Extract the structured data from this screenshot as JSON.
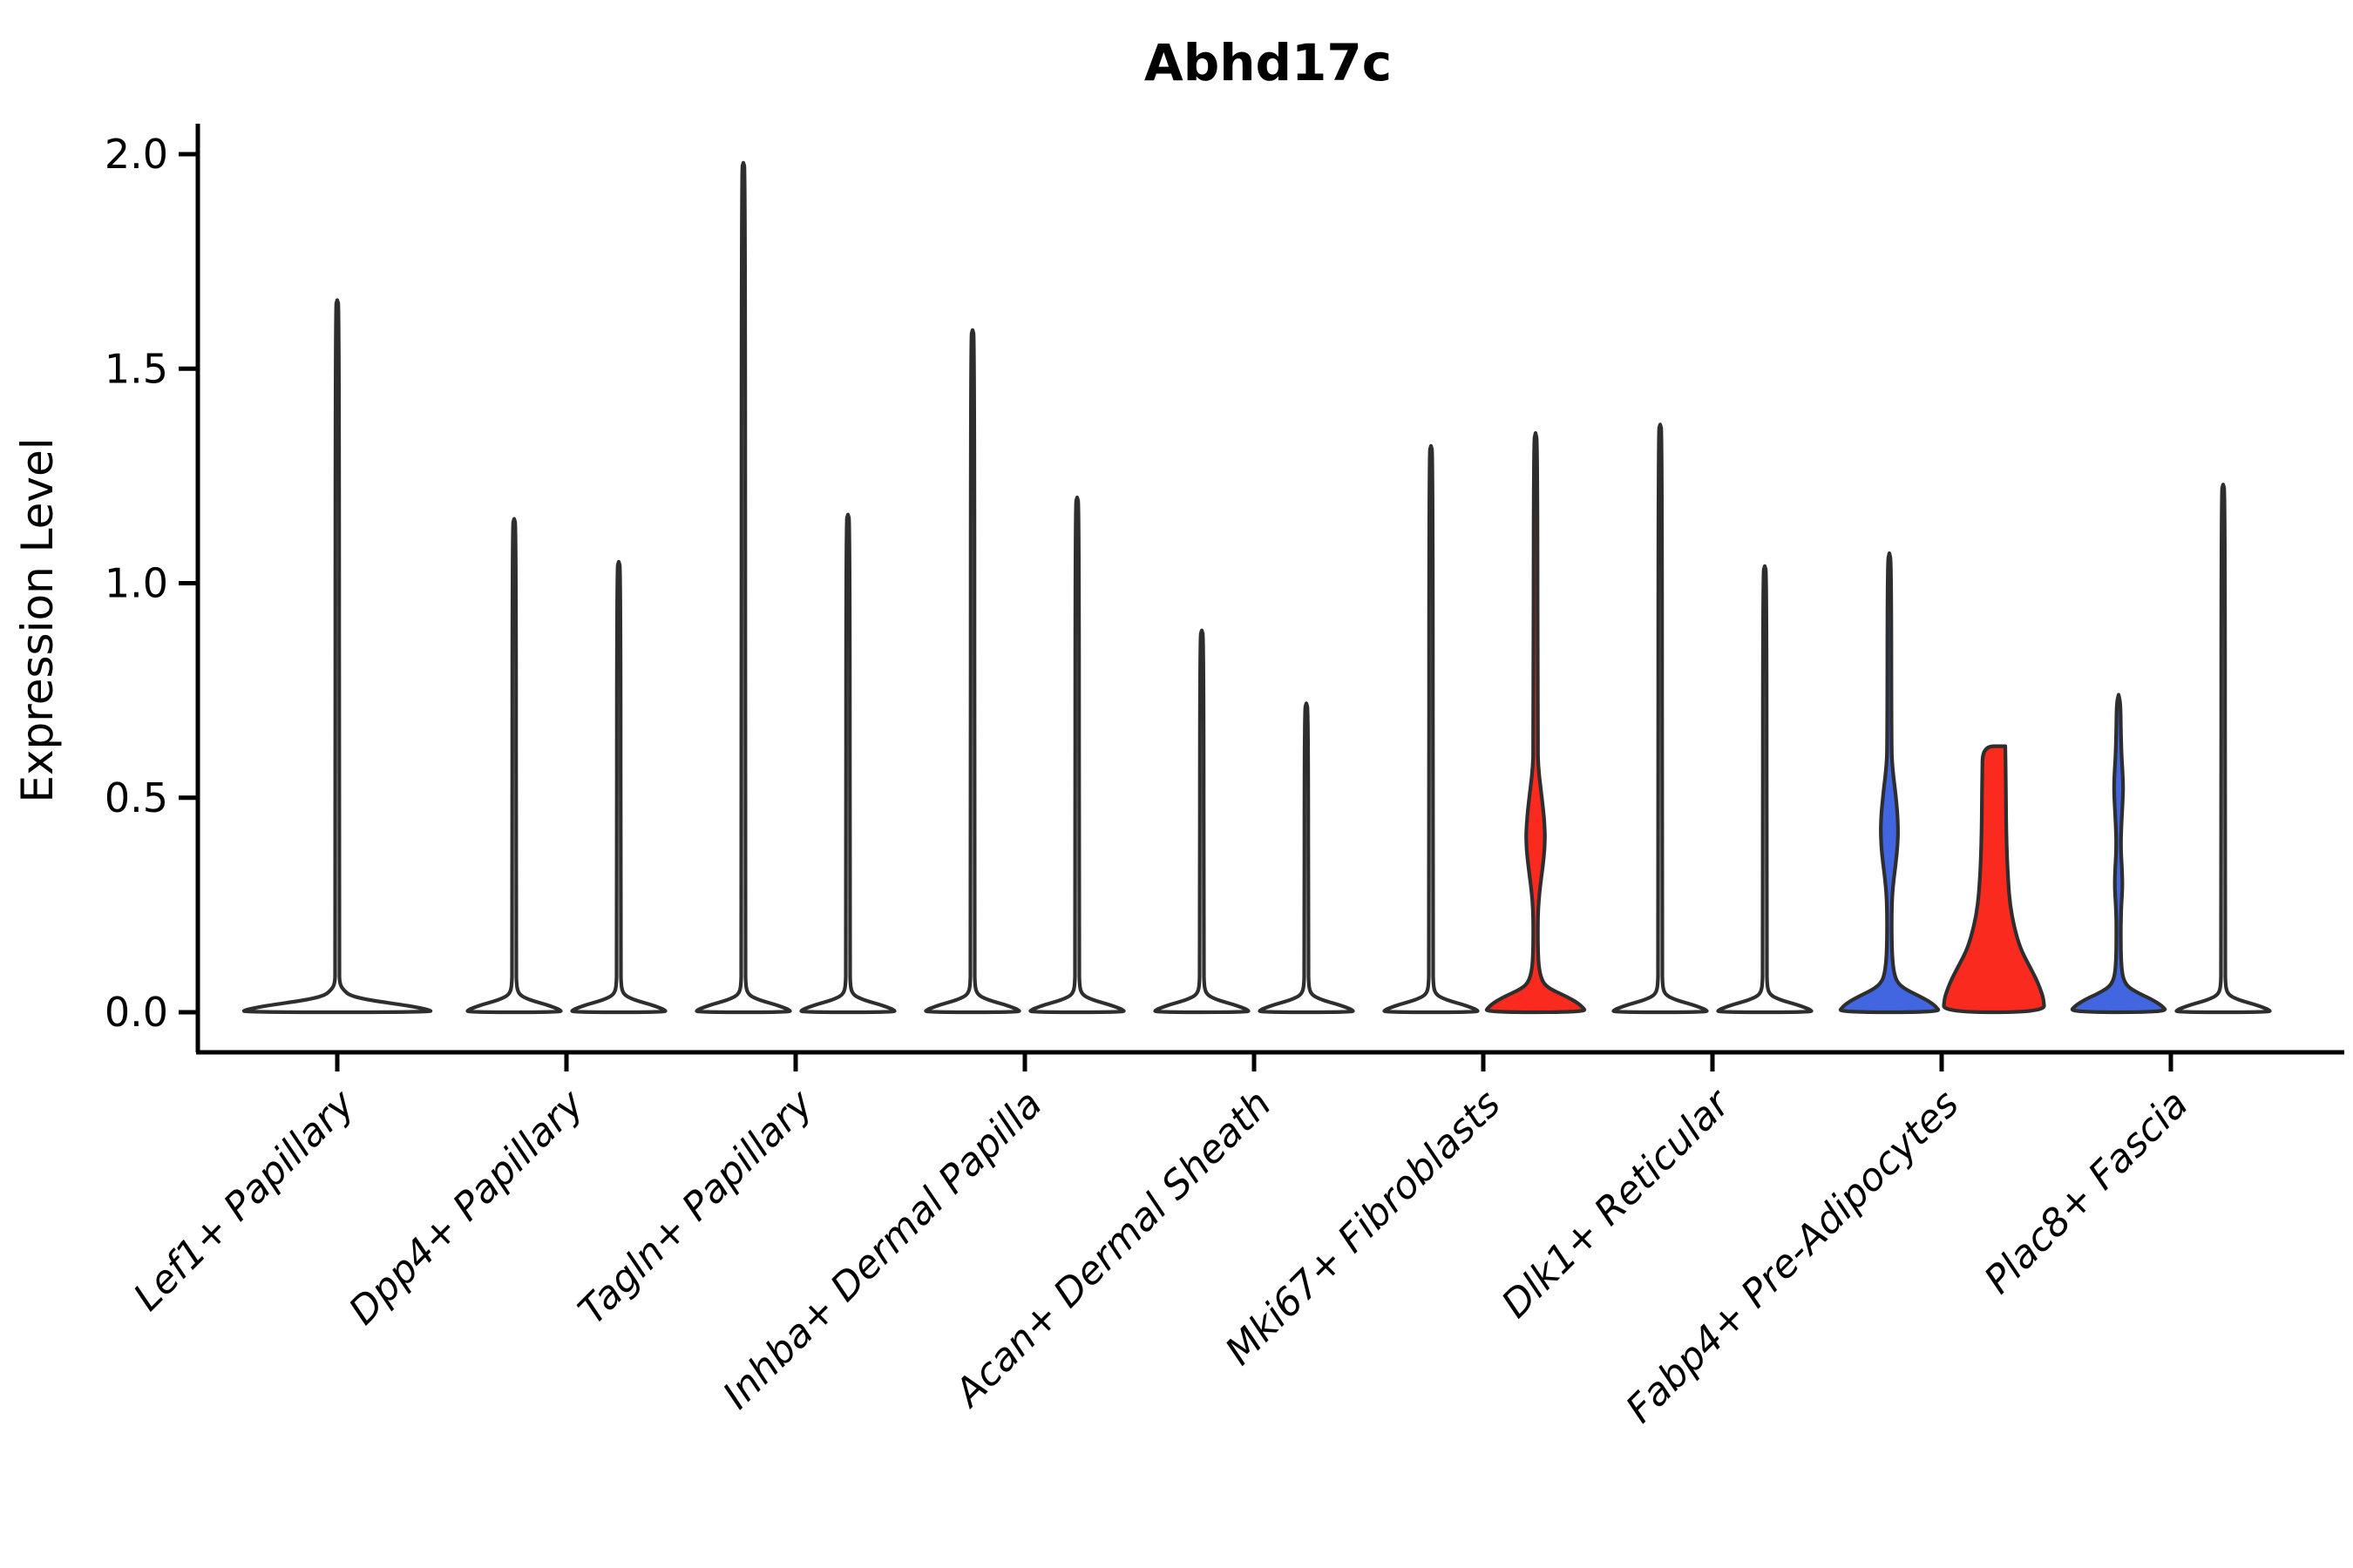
{
  "title": "Abhd17c",
  "ylabel": "Expression Level",
  "colors": {
    "red": "#fa2a1f",
    "blue": "#4166e0",
    "outline": "#2e2e2e",
    "axis": "#000000",
    "white_fill": "#ffffff",
    "background": "#ffffff"
  },
  "chart_data": {
    "type": "violin",
    "title": "Abhd17c",
    "ylabel": "Expression Level",
    "ylim": [
      0,
      2.0
    ],
    "yticks": [
      "0.0",
      "0.5",
      "1.0",
      "1.5",
      "2.0"
    ],
    "ytick_values": [
      0.0,
      0.5,
      1.0,
      1.5,
      2.0
    ],
    "grid": false,
    "legend": "none",
    "categories": [
      "Lef1+ Papillary",
      "Dpp4+ Papillary",
      "Tagln+ Papillary",
      "Inhba+ Dermal Papilla",
      "Acan+ Dermal Sheath",
      "Mki67+ Fibroblasts",
      "Dlk1+ Reticular",
      "Fabp4+ Pre-Adipocytes",
      "Plac8+ Fascia"
    ],
    "groups": [
      {
        "category": "Lef1+ Papillary",
        "violins": [
          {
            "pos": "center",
            "fill": "white",
            "max": 1.66,
            "shape": "spike",
            "base_halfwidth": 116
          }
        ]
      },
      {
        "category": "Dpp4+ Papillary",
        "violins": [
          {
            "pos": "left",
            "fill": "white",
            "max": 1.15,
            "shape": "spike",
            "base_halfwidth": 58
          },
          {
            "pos": "right",
            "fill": "white",
            "max": 1.05,
            "shape": "spike",
            "base_halfwidth": 58
          }
        ]
      },
      {
        "category": "Tagln+ Papillary",
        "violins": [
          {
            "pos": "left",
            "fill": "white",
            "max": 1.98,
            "shape": "spike",
            "base_halfwidth": 58
          },
          {
            "pos": "right",
            "fill": "white",
            "max": 1.16,
            "shape": "spike",
            "base_halfwidth": 58
          }
        ]
      },
      {
        "category": "Inhba+ Dermal Papilla",
        "violins": [
          {
            "pos": "left",
            "fill": "white",
            "max": 1.59,
            "shape": "spike",
            "base_halfwidth": 58
          },
          {
            "pos": "right",
            "fill": "white",
            "max": 1.2,
            "shape": "spike",
            "base_halfwidth": 58
          }
        ]
      },
      {
        "category": "Acan+ Dermal Sheath",
        "violins": [
          {
            "pos": "left",
            "fill": "white",
            "max": 0.89,
            "shape": "spike",
            "base_halfwidth": 58
          },
          {
            "pos": "right",
            "fill": "white",
            "max": 0.72,
            "shape": "spike",
            "base_halfwidth": 58
          }
        ]
      },
      {
        "category": "Mki67+ Fibroblasts",
        "violins": [
          {
            "pos": "left",
            "fill": "white",
            "max": 1.32,
            "shape": "spike",
            "base_halfwidth": 58
          },
          {
            "pos": "right",
            "fill": "red",
            "max": 1.35,
            "shape": "profile",
            "profile": [
              [
                1.35,
                0
              ],
              [
                1.33,
                2.2
              ],
              [
                0.62,
                2.4
              ],
              [
                0.57,
                3.2
              ],
              [
                0.52,
                6
              ],
              [
                0.47,
                9
              ],
              [
                0.43,
                10.5
              ],
              [
                0.4,
                10.8
              ],
              [
                0.36,
                9.5
              ],
              [
                0.32,
                7
              ],
              [
                0.28,
                4.5
              ],
              [
                0.24,
                3
              ],
              [
                0.2,
                2.6
              ],
              [
                0.14,
                2.8
              ],
              [
                0.1,
                4
              ],
              [
                0.07,
                8
              ],
              [
                0.055,
                16
              ],
              [
                0.04,
                32
              ],
              [
                0.025,
                46
              ],
              [
                0.012,
                54
              ],
              [
                0,
                58
              ]
            ]
          }
        ]
      },
      {
        "category": "Dlk1+ Reticular",
        "violins": [
          {
            "pos": "left",
            "fill": "white",
            "max": 1.37,
            "shape": "spike",
            "base_halfwidth": 58
          },
          {
            "pos": "right",
            "fill": "white",
            "max": 1.04,
            "shape": "spike",
            "base_halfwidth": 58
          }
        ]
      },
      {
        "category": "Fabp4+ Pre-Adipocytes",
        "violins": [
          {
            "pos": "left",
            "fill": "blue",
            "max": 1.07,
            "shape": "profile",
            "profile": [
              [
                1.07,
                0
              ],
              [
                1.05,
                2.2
              ],
              [
                0.62,
                2.4
              ],
              [
                0.57,
                3.5
              ],
              [
                0.52,
                6.5
              ],
              [
                0.47,
                9
              ],
              [
                0.43,
                10
              ],
              [
                0.39,
                9.5
              ],
              [
                0.35,
                7.5
              ],
              [
                0.31,
                5
              ],
              [
                0.27,
                3.2
              ],
              [
                0.22,
                2.6
              ],
              [
                0.16,
                2.8
              ],
              [
                0.12,
                3.6
              ],
              [
                0.09,
                5.5
              ],
              [
                0.07,
                9
              ],
              [
                0.055,
                17
              ],
              [
                0.04,
                32
              ],
              [
                0.025,
                46
              ],
              [
                0.012,
                54
              ],
              [
                0,
                58
              ]
            ]
          },
          {
            "pos": "right",
            "fill": "red",
            "max": 0.62,
            "shape": "profile",
            "flat_top": true,
            "profile": [
              [
                0.62,
                13
              ],
              [
                0.55,
                13.5
              ],
              [
                0.48,
                13.8
              ],
              [
                0.42,
                14.2
              ],
              [
                0.36,
                15
              ],
              [
                0.3,
                16.5
              ],
              [
                0.25,
                18.5
              ],
              [
                0.2,
                23
              ],
              [
                0.15,
                30
              ],
              [
                0.11,
                40
              ],
              [
                0.08,
                48
              ],
              [
                0.05,
                54
              ],
              [
                0.03,
                57
              ],
              [
                0,
                58
              ]
            ]
          }
        ]
      },
      {
        "category": "Plac8+ Fascia",
        "violins": [
          {
            "pos": "left",
            "fill": "blue",
            "max": 0.74,
            "shape": "profile",
            "profile": [
              [
                0.74,
                0
              ],
              [
                0.72,
                2.2
              ],
              [
                0.66,
                2.6
              ],
              [
                0.6,
                3.4
              ],
              [
                0.56,
                4.6
              ],
              [
                0.53,
                5.2
              ],
              [
                0.5,
                4.9
              ],
              [
                0.46,
                3.9
              ],
              [
                0.42,
                3
              ],
              [
                0.39,
                2.7
              ],
              [
                0.36,
                3.1
              ],
              [
                0.33,
                4
              ],
              [
                0.3,
                4.4
              ],
              [
                0.27,
                3.9
              ],
              [
                0.24,
                3
              ],
              [
                0.2,
                2.5
              ],
              [
                0.15,
                2.6
              ],
              [
                0.11,
                3.2
              ],
              [
                0.08,
                5
              ],
              [
                0.06,
                10
              ],
              [
                0.045,
                22
              ],
              [
                0.03,
                38
              ],
              [
                0.015,
                50
              ],
              [
                0,
                56
              ]
            ]
          },
          {
            "pos": "right",
            "fill": "white",
            "max": 1.23,
            "shape": "spike",
            "base_halfwidth": 58
          }
        ]
      }
    ]
  }
}
